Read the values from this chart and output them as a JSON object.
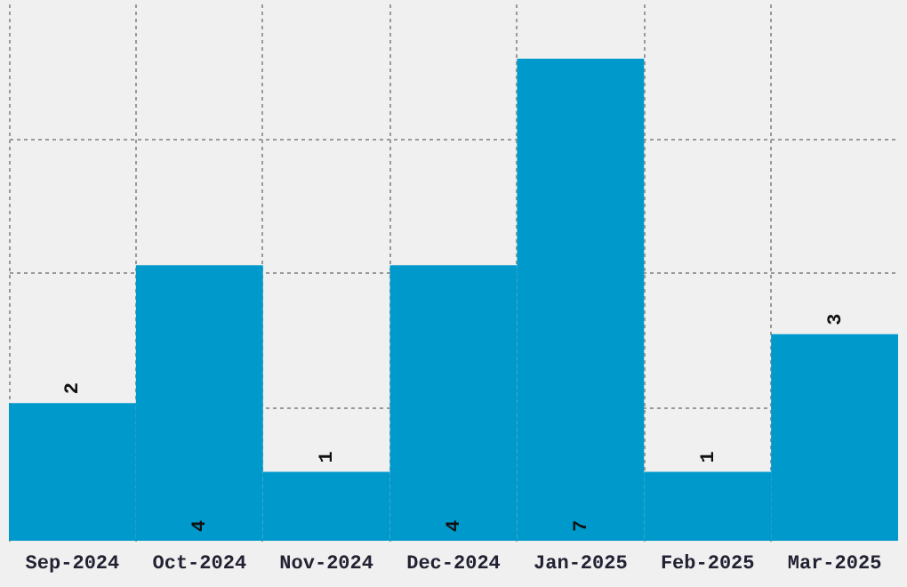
{
  "chart_data": {
    "type": "bar",
    "categories": [
      "Sep-2024",
      "Oct-2024",
      "Nov-2024",
      "Dec-2024",
      "Jan-2025",
      "Feb-2025",
      "Mar-2025"
    ],
    "values": [
      2,
      4,
      1,
      4,
      7,
      1,
      3
    ],
    "color": "#0099cc",
    "data_labels": true,
    "grid": true,
    "tick_labels": "x",
    "ylim": [
      0,
      7.8
    ],
    "yticks": [
      {
        "value": 1.95,
        "label": null
      },
      {
        "value": 3.9,
        "label": null
      },
      {
        "value": 5.85,
        "label": null
      }
    ]
  }
}
